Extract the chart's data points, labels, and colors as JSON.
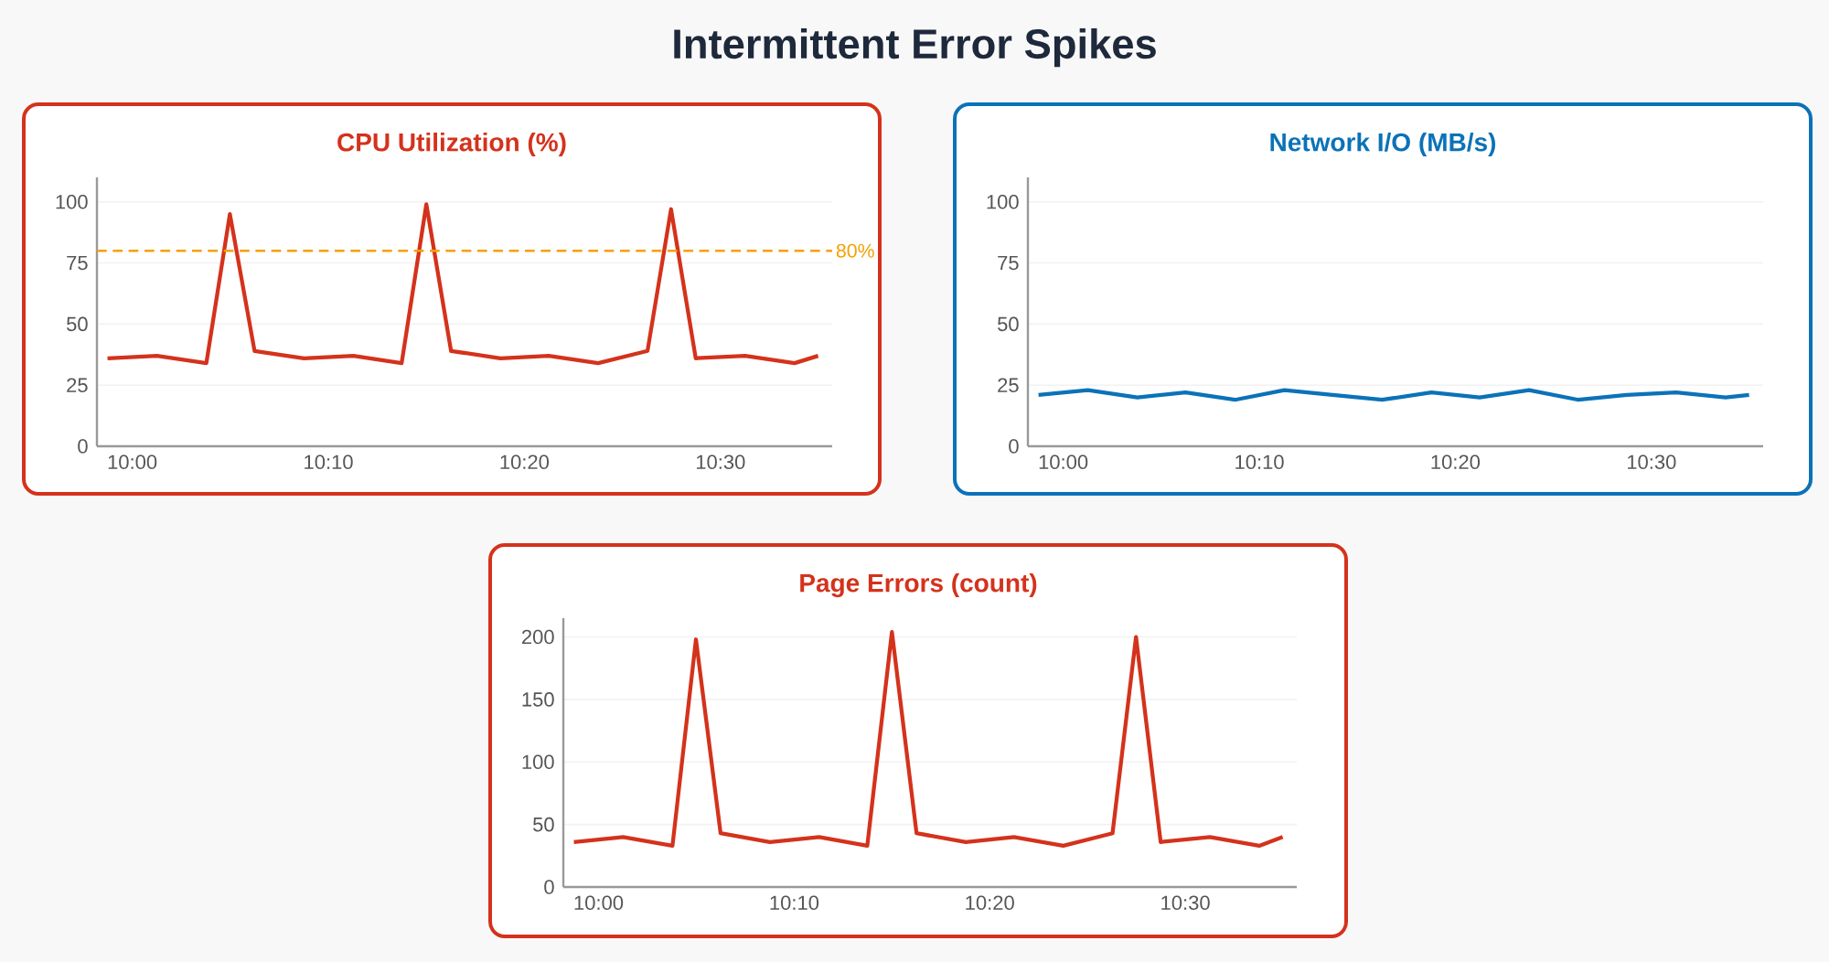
{
  "chart_data": [
    {
      "type": "line",
      "title": "CPU Utilization (%)",
      "annotations": [
        "Intermittent Error Spikes"
      ],
      "x": [
        9.979,
        10.021,
        10.063,
        10.083,
        10.104,
        10.146,
        10.188,
        10.229,
        10.25,
        10.271,
        10.313,
        10.354,
        10.396,
        10.438,
        10.458,
        10.479,
        10.521,
        10.563,
        10.583
      ],
      "series": [
        {
          "color": "#d4321c",
          "values": [
            36,
            37,
            34,
            95,
            39,
            36,
            37,
            34,
            99,
            39,
            36,
            37,
            34,
            39,
            97,
            36,
            37,
            34,
            37
          ]
        }
      ],
      "xlim": [
        9.97,
        10.595
      ],
      "ylim": [
        0,
        110
      ],
      "yticks": [
        0,
        25,
        50,
        75,
        100
      ],
      "xticks": [
        {
          "value": 10,
          "label": "10:00"
        },
        {
          "value": 10.1667,
          "label": "10:10"
        },
        {
          "value": 10.3333,
          "label": "10:20"
        },
        {
          "value": 10.5,
          "label": "10:30"
        }
      ],
      "ref_lines": [
        {
          "axis": "y",
          "value": 80,
          "label": "80%",
          "color": "#f5a000",
          "line_style": "dashed"
        }
      ],
      "grid": "y"
    },
    {
      "type": "line",
      "title": "Network I/O (MB/s)",
      "x": [
        9.979,
        10.021,
        10.063,
        10.104,
        10.146,
        10.188,
        10.229,
        10.271,
        10.313,
        10.354,
        10.396,
        10.438,
        10.479,
        10.521,
        10.563,
        10.583
      ],
      "series": [
        {
          "color": "#0b72b8",
          "values": [
            21,
            23,
            20,
            22,
            19,
            23,
            21,
            19,
            22,
            20,
            23,
            19,
            21,
            22,
            20,
            21
          ]
        }
      ],
      "xlim": [
        9.97,
        10.595
      ],
      "ylim": [
        0,
        110
      ],
      "yticks": [
        0,
        25,
        50,
        75,
        100
      ],
      "xticks": [
        {
          "value": 10,
          "label": "10:00"
        },
        {
          "value": 10.1667,
          "label": "10:10"
        },
        {
          "value": 10.3333,
          "label": "10:20"
        },
        {
          "value": 10.5,
          "label": "10:30"
        }
      ],
      "grid": "y"
    },
    {
      "type": "line",
      "title": "Page Errors (count)",
      "x": [
        9.979,
        10.021,
        10.063,
        10.083,
        10.104,
        10.146,
        10.188,
        10.229,
        10.25,
        10.271,
        10.313,
        10.354,
        10.396,
        10.438,
        10.458,
        10.479,
        10.521,
        10.563,
        10.583
      ],
      "series": [
        {
          "color": "#d4321c",
          "values": [
            36,
            40,
            33,
            198,
            43,
            36,
            40,
            33,
            204,
            43,
            36,
            40,
            33,
            43,
            200,
            36,
            40,
            33,
            40
          ]
        }
      ],
      "xlim": [
        9.97,
        10.595
      ],
      "ylim": [
        0,
        215
      ],
      "yticks": [
        0,
        50,
        100,
        150,
        200
      ],
      "xticks": [
        {
          "value": 10,
          "label": "10:00"
        },
        {
          "value": 10.1667,
          "label": "10:10"
        },
        {
          "value": 10.3333,
          "label": "10:20"
        },
        {
          "value": 10.5,
          "label": "10:30"
        }
      ],
      "grid": "y"
    }
  ]
}
